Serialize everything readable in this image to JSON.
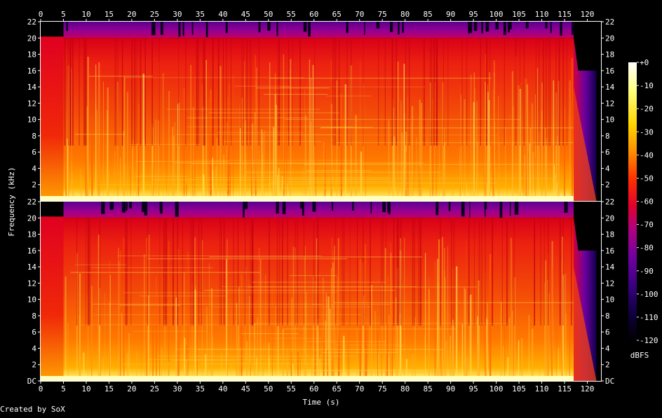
{
  "chart_data": {
    "type": "heatmap",
    "subtype": "spectrogram",
    "channels": 2,
    "xlabel": "Time (s)",
    "ylabel": "Frequency (kHz)",
    "xlim": [
      0,
      123
    ],
    "ylim": [
      0,
      22
    ],
    "x_ticks": [
      0,
      5,
      10,
      15,
      20,
      25,
      30,
      35,
      40,
      45,
      50,
      55,
      60,
      65,
      70,
      75,
      80,
      85,
      90,
      95,
      100,
      105,
      110,
      115,
      120
    ],
    "y_ticks_top": [
      {
        "value": 2,
        "label": "2"
      },
      {
        "value": 4,
        "label": "4"
      },
      {
        "value": 6,
        "label": "6"
      },
      {
        "value": 8,
        "label": "8"
      },
      {
        "value": 10,
        "label": "10"
      },
      {
        "value": 12,
        "label": "12"
      },
      {
        "value": 14,
        "label": "14"
      },
      {
        "value": 16,
        "label": "16"
      },
      {
        "value": 18,
        "label": "18"
      },
      {
        "value": 20,
        "label": "20"
      },
      {
        "value": 22,
        "label": "22"
      }
    ],
    "y_ticks_bottom": [
      {
        "value": 0,
        "label": "DC"
      },
      {
        "value": 2,
        "label": "2"
      },
      {
        "value": 4,
        "label": "4"
      },
      {
        "value": 6,
        "label": "6"
      },
      {
        "value": 8,
        "label": "8"
      },
      {
        "value": 10,
        "label": "10"
      },
      {
        "value": 12,
        "label": "12"
      },
      {
        "value": 14,
        "label": "14"
      },
      {
        "value": 16,
        "label": "16"
      },
      {
        "value": 18,
        "label": "18"
      },
      {
        "value": 20,
        "label": "20"
      },
      {
        "value": 22,
        "label": "22"
      }
    ],
    "colorbar": {
      "unit": "dBFS",
      "range": [
        -120,
        0
      ],
      "ticks": [
        {
          "value": 0,
          "label": "+0"
        },
        {
          "value": -10,
          "label": "-10"
        },
        {
          "value": -20,
          "label": "-20"
        },
        {
          "value": -30,
          "label": "-30"
        },
        {
          "value": -40,
          "label": "-40"
        },
        {
          "value": -50,
          "label": "-50"
        },
        {
          "value": -60,
          "label": "-60"
        },
        {
          "value": -70,
          "label": "-70"
        },
        {
          "value": -80,
          "label": "-80"
        },
        {
          "value": -90,
          "label": "-90"
        },
        {
          "value": -100,
          "label": "-100"
        },
        {
          "value": -110,
          "label": "-110"
        },
        {
          "value": -120,
          "label": "-120"
        }
      ],
      "colors": [
        "#ffffff",
        "#ffff80",
        "#ffd800",
        "#ff9000",
        "#ff3000",
        "#e00030",
        "#b00080",
        "#7000a0",
        "#3a0080",
        "#100040",
        "#000000"
      ]
    },
    "features": {
      "cutoff_khz_full_band": 20,
      "band_start_s": 5,
      "lowpass_start_s": 117,
      "lowpass_cutoff_khz_end": 16,
      "fadeout_end_s": 122
    }
  },
  "footer": {
    "credit": "Created by SoX"
  }
}
